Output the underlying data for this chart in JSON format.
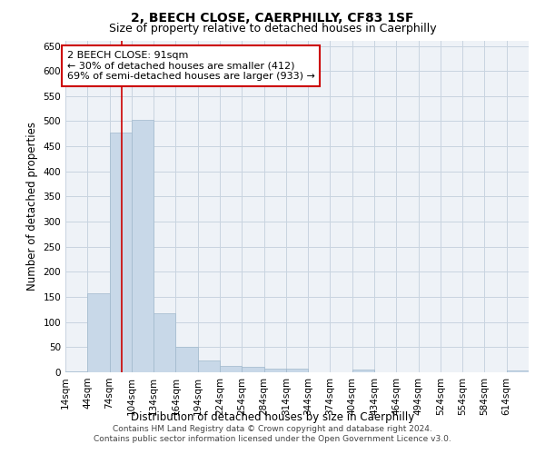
{
  "title": "2, BEECH CLOSE, CAERPHILLY, CF83 1SF",
  "subtitle": "Size of property relative to detached houses in Caerphilly",
  "xlabel": "Distribution of detached houses by size in Caerphilly",
  "ylabel": "Number of detached properties",
  "bin_labels": [
    "14sqm",
    "44sqm",
    "74sqm",
    "104sqm",
    "134sqm",
    "164sqm",
    "194sqm",
    "224sqm",
    "254sqm",
    "284sqm",
    "314sqm",
    "344sqm",
    "374sqm",
    "404sqm",
    "434sqm",
    "464sqm",
    "494sqm",
    "524sqm",
    "554sqm",
    "584sqm",
    "614sqm"
  ],
  "bin_edges": [
    14,
    44,
    74,
    104,
    134,
    164,
    194,
    224,
    254,
    284,
    314,
    344,
    374,
    404,
    434,
    464,
    494,
    524,
    554,
    584,
    614,
    644
  ],
  "bar_values": [
    2,
    158,
    478,
    503,
    118,
    50,
    23,
    12,
    11,
    8,
    7,
    0,
    0,
    5,
    0,
    0,
    0,
    0,
    0,
    0,
    4
  ],
  "bar_color": "#c8d8e8",
  "bar_edge_color": "#a0b8cc",
  "property_size": 91,
  "red_line_color": "#cc0000",
  "annotation_text": "2 BEECH CLOSE: 91sqm\n← 30% of detached houses are smaller (412)\n69% of semi-detached houses are larger (933) →",
  "annotation_box_color": "#ffffff",
  "annotation_box_edge_color": "#cc0000",
  "ylim": [
    0,
    660
  ],
  "yticks": [
    0,
    50,
    100,
    150,
    200,
    250,
    300,
    350,
    400,
    450,
    500,
    550,
    600,
    650
  ],
  "grid_color": "#c8d4e0",
  "bg_color": "#eef2f7",
  "footer_line1": "Contains HM Land Registry data © Crown copyright and database right 2024.",
  "footer_line2": "Contains public sector information licensed under the Open Government Licence v3.0.",
  "title_fontsize": 10,
  "subtitle_fontsize": 9,
  "axis_label_fontsize": 8.5,
  "tick_fontsize": 7.5,
  "annotation_fontsize": 8,
  "footer_fontsize": 6.5
}
